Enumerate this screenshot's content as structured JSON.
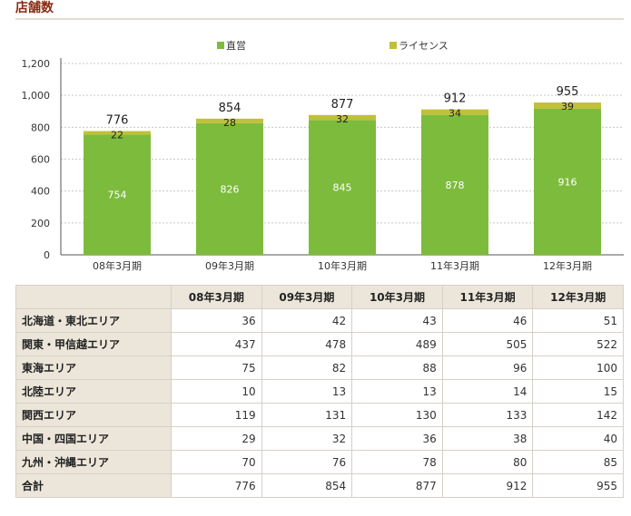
{
  "page": {
    "title": "店舗数"
  },
  "chart_data": {
    "type": "bar",
    "stacked": true,
    "categories": [
      "08年3月期",
      "09年3月期",
      "10年3月期",
      "11年3月期",
      "12年3月期"
    ],
    "series": [
      {
        "name": "直営",
        "color": "#7dbb3c",
        "values": [
          754,
          826,
          845,
          878,
          916
        ]
      },
      {
        "name": "ライセンス",
        "color": "#c0c03a",
        "values": [
          22,
          28,
          32,
          34,
          39
        ]
      }
    ],
    "totals": [
      776,
      854,
      877,
      912,
      955
    ],
    "yticks": [
      0,
      200,
      400,
      600,
      800,
      1000,
      1200
    ],
    "ytick_labels": [
      "0",
      "200",
      "400",
      "600",
      "800",
      "1,000",
      "1,200"
    ],
    "ylim": [
      0,
      1200
    ],
    "grid": true,
    "legend": "top-center"
  },
  "table": {
    "headers": [
      "",
      "08年3月期",
      "09年3月期",
      "10年3月期",
      "11年3月期",
      "12年3月期"
    ],
    "rows": [
      {
        "label": "北海道・東北エリア",
        "values": [
          "36",
          "42",
          "43",
          "46",
          "51"
        ]
      },
      {
        "label": "関東・甲信越エリア",
        "values": [
          "437",
          "478",
          "489",
          "505",
          "522"
        ]
      },
      {
        "label": "東海エリア",
        "values": [
          "75",
          "82",
          "88",
          "96",
          "100"
        ]
      },
      {
        "label": "北陸エリア",
        "values": [
          "10",
          "13",
          "13",
          "14",
          "15"
        ]
      },
      {
        "label": "関西エリア",
        "values": [
          "119",
          "131",
          "130",
          "133",
          "142"
        ]
      },
      {
        "label": "中国・四国エリア",
        "values": [
          "29",
          "32",
          "36",
          "38",
          "40"
        ]
      },
      {
        "label": "九州・沖縄エリア",
        "values": [
          "70",
          "76",
          "78",
          "80",
          "85"
        ]
      },
      {
        "label": "合計",
        "values": [
          "776",
          "854",
          "877",
          "912",
          "955"
        ]
      }
    ]
  }
}
